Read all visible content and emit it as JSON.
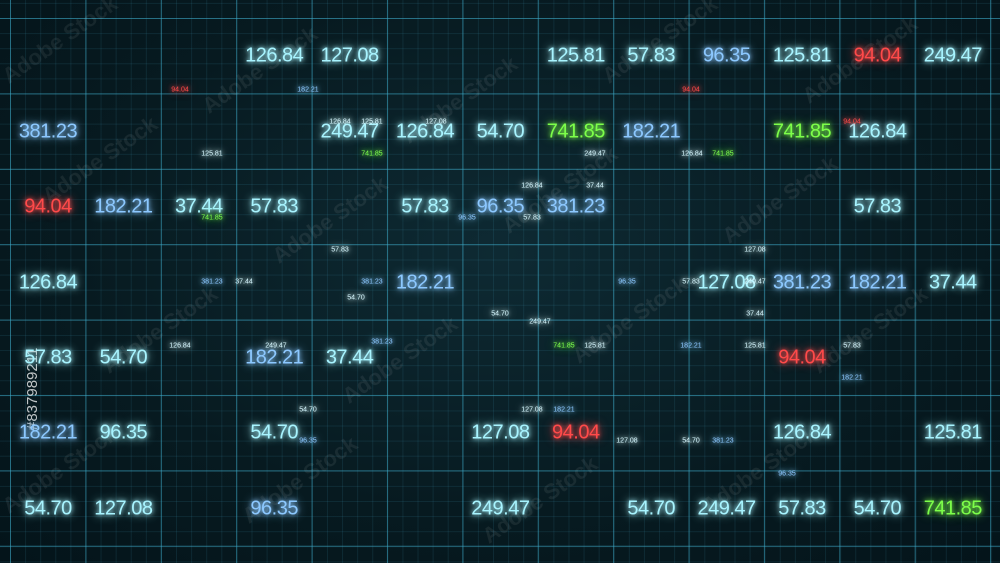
{
  "large_numbers": [
    {
      "text": "126.84",
      "color": "#a8f4ff"
    },
    {
      "text": "127.08",
      "color": "#a8f4ff"
    },
    {
      "text": "125.81",
      "color": "#a8f4ff"
    },
    {
      "text": "57.83",
      "color": "#a8f4ff"
    },
    {
      "text": "96.35",
      "color": "#8cc8ff"
    },
    {
      "text": "125.81",
      "color": "#a8f4ff"
    },
    {
      "text": "94.04",
      "color": "#ff4a4a"
    },
    {
      "text": "249.47",
      "color": "#a8f4ff"
    },
    {
      "text": "381.23",
      "color": "#8cc8ff"
    },
    {
      "text": "249.47",
      "color": "#a8f4ff"
    },
    {
      "text": "126.84",
      "color": "#a8f4ff"
    },
    {
      "text": "54.70",
      "color": "#a8f4ff"
    },
    {
      "text": "741.85",
      "color": "#7dff4a"
    },
    {
      "text": "182.21",
      "color": "#8cc8ff"
    },
    {
      "text": "741.85",
      "color": "#7dff4a"
    },
    {
      "text": "126.84",
      "color": "#a8f4ff"
    },
    {
      "text": "94.04",
      "color": "#ff4a4a"
    },
    {
      "text": "182.21",
      "color": "#8cc8ff"
    },
    {
      "text": "37.44",
      "color": "#a8f4ff"
    },
    {
      "text": "57.83",
      "color": "#a8f4ff"
    },
    {
      "text": "57.83",
      "color": "#a8f4ff"
    },
    {
      "text": "96.35",
      "color": "#8cc8ff"
    },
    {
      "text": "381.23",
      "color": "#8cc8ff"
    },
    {
      "text": "57.83",
      "color": "#a8f4ff"
    },
    {
      "text": "126.84",
      "color": "#a8f4ff"
    },
    {
      "text": "182.21",
      "color": "#8cc8ff"
    },
    {
      "text": "127.08",
      "color": "#a8f4ff"
    },
    {
      "text": "381.23",
      "color": "#8cc8ff"
    },
    {
      "text": "182.21",
      "color": "#8cc8ff"
    },
    {
      "text": "37.44",
      "color": "#a8f4ff"
    },
    {
      "text": "57.83",
      "color": "#a8f4ff"
    },
    {
      "text": "54.70",
      "color": "#a8f4ff"
    },
    {
      "text": "182.21",
      "color": "#8cc8ff"
    },
    {
      "text": "37.44",
      "color": "#a8f4ff"
    },
    {
      "text": "94.04",
      "color": "#ff4a4a"
    },
    {
      "text": "182.21",
      "color": "#8cc8ff"
    },
    {
      "text": "96.35",
      "color": "#a8f4ff"
    },
    {
      "text": "54.70",
      "color": "#a8f4ff"
    },
    {
      "text": "127.08",
      "color": "#a8f4ff"
    },
    {
      "text": "94.04",
      "color": "#ff4a4a"
    },
    {
      "text": "126.84",
      "color": "#a8f4ff"
    },
    {
      "text": "125.81",
      "color": "#a8f4ff"
    },
    {
      "text": "54.70",
      "color": "#a8f4ff"
    },
    {
      "text": "127.08",
      "color": "#a8f4ff"
    },
    {
      "text": "96.35",
      "color": "#8cc8ff"
    },
    {
      "text": "249.47",
      "color": "#a8f4ff"
    },
    {
      "text": "54.70",
      "color": "#a8f4ff"
    },
    {
      "text": "249.47",
      "color": "#a8f4ff"
    },
    {
      "text": "57.83",
      "color": "#a8f4ff"
    },
    {
      "text": "54.70",
      "color": "#a8f4ff"
    },
    {
      "text": "741.85",
      "color": "#7dff4a"
    }
  ],
  "small_numbers": [
    {
      "text": "94.04",
      "color": "#ff4a4a"
    },
    {
      "text": "182.21",
      "color": "#8cc8ff"
    },
    {
      "text": "94.04",
      "color": "#ff4a4a"
    },
    {
      "text": "125.81",
      "color": "#d8f8ff"
    },
    {
      "text": "741.85",
      "color": "#7dff4a"
    },
    {
      "text": "249.47",
      "color": "#d8f8ff"
    },
    {
      "text": "126.84",
      "color": "#d8f8ff"
    },
    {
      "text": "741.85",
      "color": "#7dff4a"
    },
    {
      "text": "94.04",
      "color": "#ff4a4a"
    },
    {
      "text": "126.84",
      "color": "#d8f8ff"
    },
    {
      "text": "125.81",
      "color": "#d8f8ff"
    },
    {
      "text": "127.08",
      "color": "#d8f8ff"
    },
    {
      "text": "126.84",
      "color": "#d8f8ff"
    },
    {
      "text": "37.44",
      "color": "#d8f8ff"
    },
    {
      "text": "741.85",
      "color": "#7dff4a"
    },
    {
      "text": "96.35",
      "color": "#8cc8ff"
    },
    {
      "text": "57.83",
      "color": "#d8f8ff"
    },
    {
      "text": "57.83",
      "color": "#d8f8ff"
    },
    {
      "text": "127.08",
      "color": "#d8f8ff"
    },
    {
      "text": "381.23",
      "color": "#8cc8ff"
    },
    {
      "text": "37.44",
      "color": "#d8f8ff"
    },
    {
      "text": "381.23",
      "color": "#8cc8ff"
    },
    {
      "text": "96.35",
      "color": "#8cc8ff"
    },
    {
      "text": "57.83",
      "color": "#d8f8ff"
    },
    {
      "text": "249.47",
      "color": "#d8f8ff"
    },
    {
      "text": "54.70",
      "color": "#d8f8ff"
    },
    {
      "text": "37.44",
      "color": "#d8f8ff"
    },
    {
      "text": "126.84",
      "color": "#d8f8ff"
    },
    {
      "text": "249.47",
      "color": "#d8f8ff"
    },
    {
      "text": "741.85",
      "color": "#7dff4a"
    },
    {
      "text": "125.81",
      "color": "#d8f8ff"
    },
    {
      "text": "182.21",
      "color": "#8cc8ff"
    },
    {
      "text": "125.81",
      "color": "#d8f8ff"
    },
    {
      "text": "57.83",
      "color": "#d8f8ff"
    },
    {
      "text": "182.21",
      "color": "#8cc8ff"
    },
    {
      "text": "54.70",
      "color": "#d8f8ff"
    },
    {
      "text": "96.35",
      "color": "#8cc8ff"
    },
    {
      "text": "127.08",
      "color": "#d8f8ff"
    },
    {
      "text": "182.21",
      "color": "#8cc8ff"
    },
    {
      "text": "381.23",
      "color": "#8cc8ff"
    },
    {
      "text": "127.08",
      "color": "#d8f8ff"
    },
    {
      "text": "54.70",
      "color": "#d8f8ff"
    },
    {
      "text": "381.23",
      "color": "#8cc8ff"
    },
    {
      "text": "96.35",
      "color": "#8cc8ff"
    },
    {
      "text": "54.70",
      "color": "#d8f8ff"
    },
    {
      "text": "249.47",
      "color": "#d8f8ff"
    }
  ],
  "watermark": "Adobe Stock",
  "side_id": "#837989211"
}
